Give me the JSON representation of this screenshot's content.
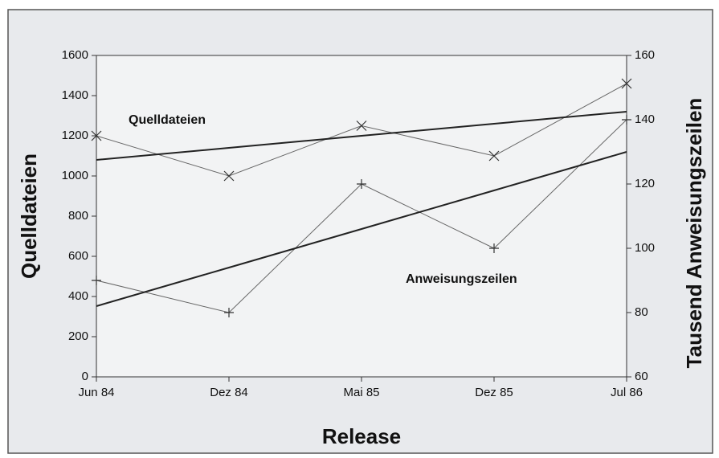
{
  "chart_data": {
    "type": "line",
    "x_label": "Release",
    "y_label": "Quelldateien",
    "y2_label": "Tausend Anweisungszeilen",
    "categories": [
      "Jun 84",
      "Dez 84",
      "Mai 85",
      "Dez 85",
      "Jul 86"
    ],
    "series": [
      {
        "name": "Quelldateien",
        "color": "#666666",
        "marker": "x",
        "line_width": 1,
        "values": [
          1200,
          1000,
          1250,
          1100,
          1460
        ]
      },
      {
        "name": "Anweisungszeilen",
        "axis": "y2",
        "color": "#666666",
        "marker": "+",
        "line_width": 1,
        "values": [
          90,
          80,
          120,
          100,
          140
        ]
      },
      {
        "color": "#222222",
        "marker": "none",
        "line_width": 2,
        "values": [
          1080,
          1140,
          1200,
          1260,
          1320
        ]
      },
      {
        "axis": "y2",
        "color": "#222222",
        "marker": "none",
        "line_width": 2,
        "values": [
          82,
          94,
          106,
          118,
          130
        ]
      }
    ],
    "ylim": [
      0,
      1600
    ],
    "yticks": [
      0,
      200,
      400,
      600,
      800,
      1000,
      1200,
      1400,
      1600
    ],
    "y2lim": [
      60,
      160
    ],
    "y2ticks": [
      60,
      80,
      100,
      120,
      140,
      160
    ],
    "grid": false
  }
}
